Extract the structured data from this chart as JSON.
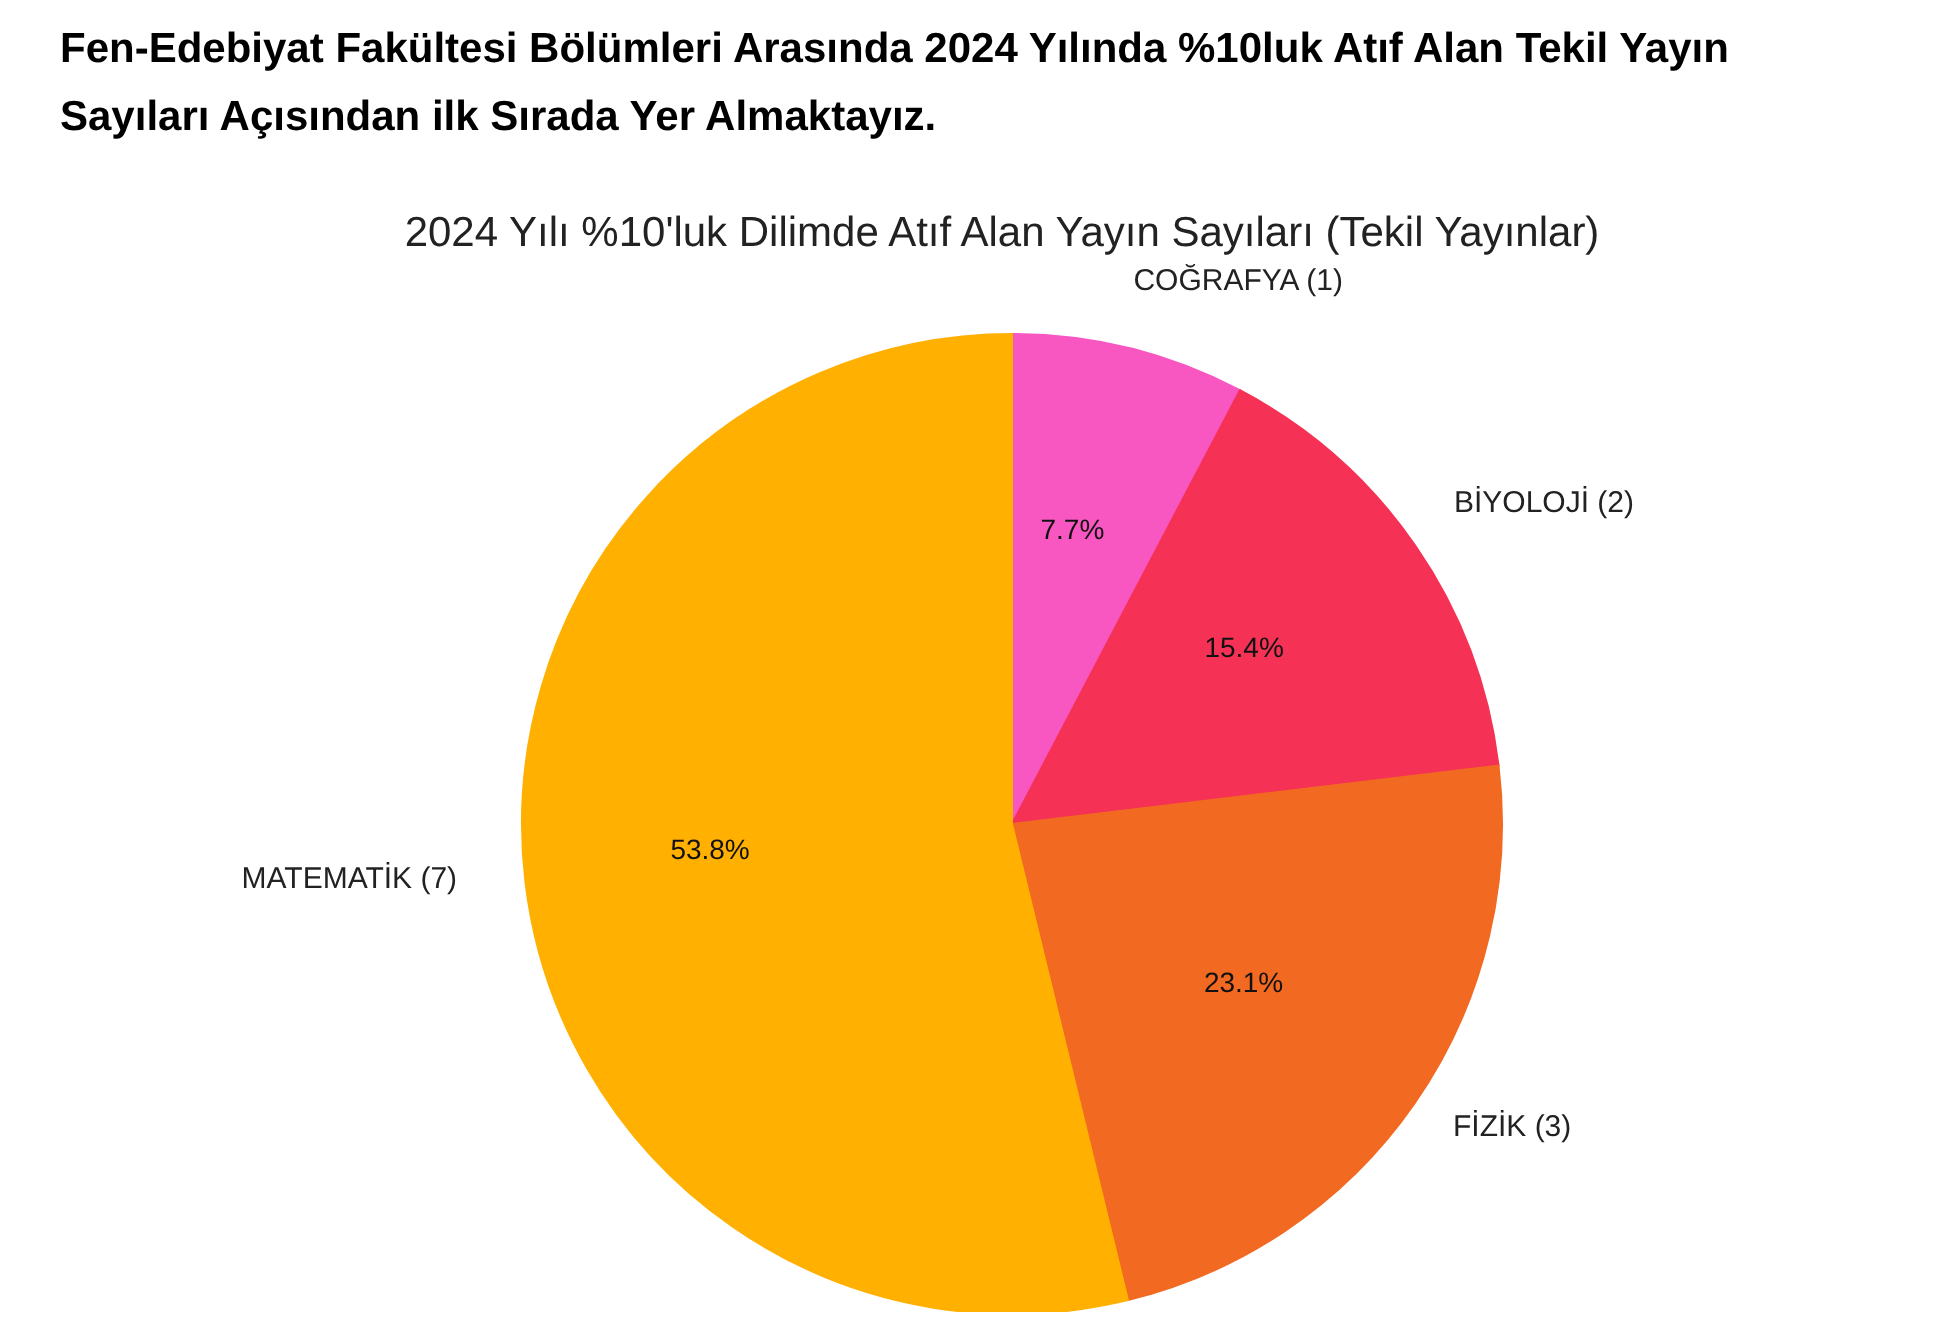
{
  "chart_data": {
    "type": "pie",
    "title": "Fen-Edebiyat Fakültesi Bölümleri Arasında 2024 Yılında %10luk Atıf Alan Tekil Yayın Sayıları Açısından ilk Sırada Yer Almaktayız.",
    "subtitle": "2024 Yılı %10'luk Dilimde Atıf Alan Yayın Sayıları (Tekil Yayınlar)",
    "categories": [
      "COĞRAFYA (1)",
      "BİYOLOJİ (2)",
      "FİZİK (3)",
      "MATEMATİK (7)"
    ],
    "values": [
      7.7,
      15.4,
      23.1,
      53.8
    ],
    "value_labels": [
      "7.7%",
      "15.4%",
      "23.1%",
      "53.8%"
    ],
    "colors": [
      "#f857c1",
      "#f53155",
      "#f26922",
      "#ffb000"
    ],
    "legend": false
  }
}
